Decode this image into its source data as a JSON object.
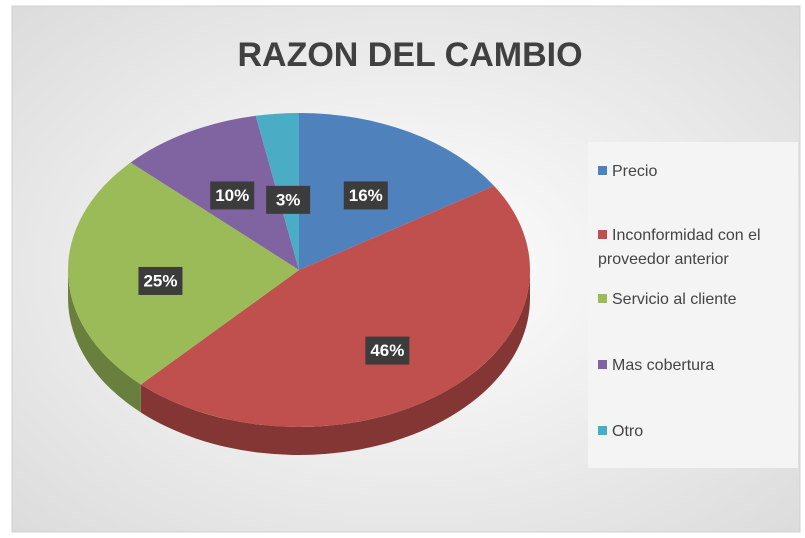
{
  "chart_data": {
    "type": "pie",
    "title": "RAZON DEL CAMBIO",
    "categories": [
      "Precio",
      "Inconformidad con el proveedor anterior",
      "Servicio al cliente",
      "Mas cobertura",
      "Otro"
    ],
    "values": [
      16,
      46,
      25,
      10,
      3
    ],
    "value_labels": [
      "16%",
      "46%",
      "25%",
      "10%",
      "3%"
    ],
    "colors": [
      "#4f81bd",
      "#c0504d",
      "#9bbb59",
      "#8064a2",
      "#4bacc6"
    ],
    "legend": "right"
  }
}
